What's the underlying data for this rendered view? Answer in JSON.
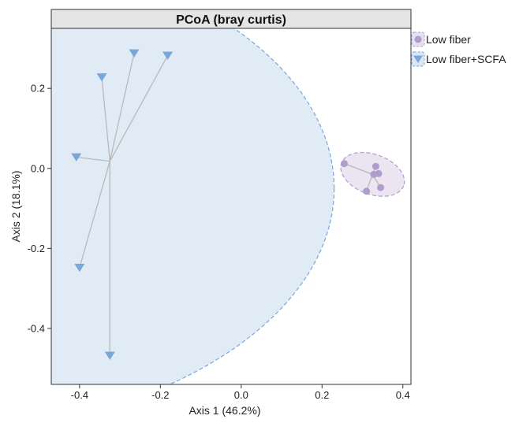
{
  "chart_data": {
    "type": "scatter",
    "title": "PCoA (bray curtis)",
    "xlabel": "Axis 1 (46.2%)",
    "ylabel": "Axis 2 (18.1%)",
    "xlim": [
      -0.47,
      0.42
    ],
    "ylim": [
      -0.54,
      0.35
    ],
    "x_ticks": [
      -0.4,
      -0.2,
      0.0,
      0.2,
      0.4
    ],
    "x_tick_labels": [
      "-0.4",
      "-0.2",
      "0.0",
      "0.2",
      "0.4"
    ],
    "y_ticks": [
      0.2,
      0.0,
      -0.2,
      -0.4
    ],
    "y_tick_labels": [
      "0.2",
      "0.0",
      "-0.2",
      "-0.4"
    ],
    "grid": false,
    "legend_position": "right",
    "series": [
      {
        "name": "Low fiber",
        "marker": "circle",
        "color": "#b09ccd",
        "fill": "#e7e1ef",
        "centroid": [
          0.325,
          -0.015
        ],
        "ellipse": {
          "rx": 0.082,
          "ry": 0.05,
          "rotation_deg": 20
        },
        "points": [
          [
            0.255,
            0.012
          ],
          [
            0.333,
            0.005
          ],
          [
            0.328,
            -0.015
          ],
          [
            0.34,
            -0.013
          ],
          [
            0.345,
            -0.048
          ],
          [
            0.31,
            -0.057
          ]
        ]
      },
      {
        "name": "Low fiber+SCFA",
        "marker": "triangle-down",
        "color": "#7aa6da",
        "fill": "#dce7f3",
        "centroid": [
          -0.325,
          0.018
        ],
        "points": [
          [
            -0.345,
            0.228
          ],
          [
            -0.265,
            0.288
          ],
          [
            -0.182,
            0.282
          ],
          [
            -0.408,
            0.028
          ],
          [
            -0.4,
            -0.248
          ],
          [
            -0.325,
            -0.468
          ]
        ]
      }
    ]
  }
}
